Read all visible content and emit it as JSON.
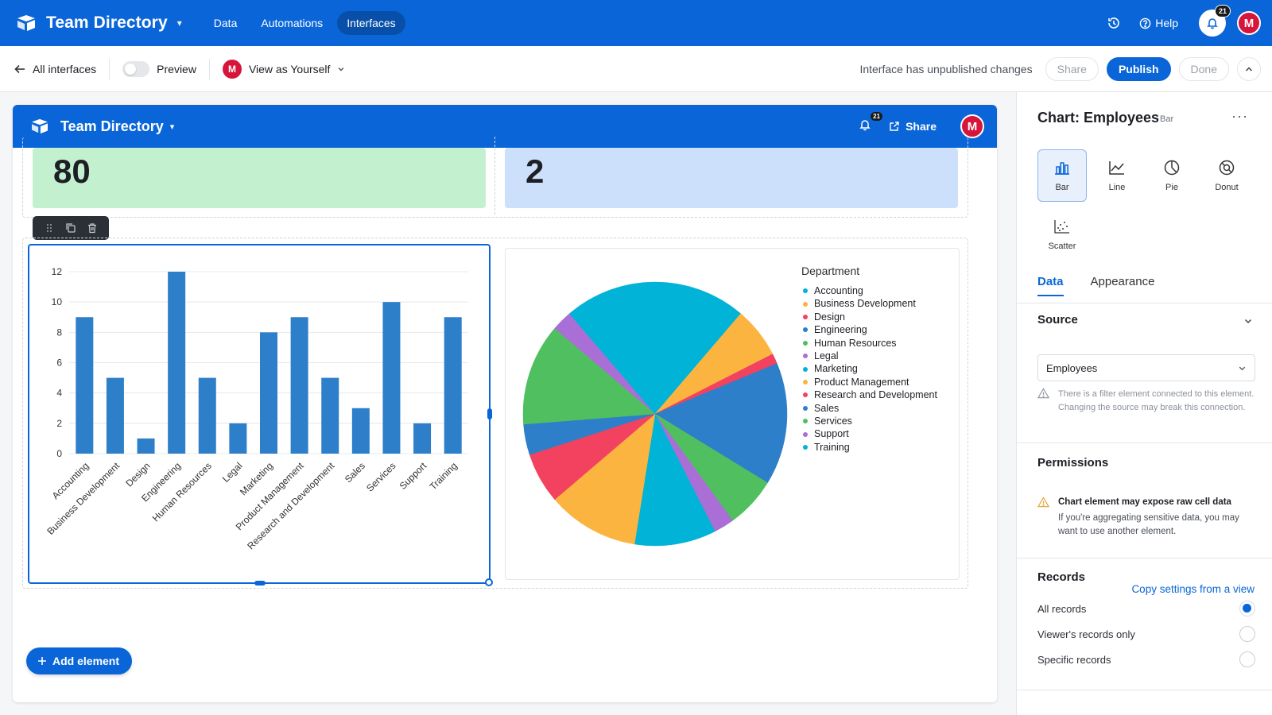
{
  "app": {
    "title": "Team Directory",
    "nav": [
      "Data",
      "Automations",
      "Interfaces"
    ],
    "active_nav": "Interfaces",
    "help_label": "Help",
    "notification_count": "21",
    "avatar_initial": "M"
  },
  "subbar": {
    "back_label": "All interfaces",
    "preview_label": "Preview",
    "view_as_label": "View as Yourself",
    "status": "Interface has unpublished changes",
    "share_label": "Share",
    "publish_label": "Publish",
    "done_label": "Done"
  },
  "interface": {
    "title": "Team Directory",
    "notification_count": "21",
    "share_label": "Share",
    "avatar_initial": "M",
    "stats": [
      {
        "value": "80",
        "color": "#c3f1d0"
      },
      {
        "value": "2",
        "color": "#cde0fb"
      }
    ],
    "add_element_label": "Add element"
  },
  "colors": {
    "brand": "#0a66d8",
    "bar": "#2d7fc9"
  },
  "chart_data": [
    {
      "type": "bar",
      "categories": [
        "Accounting",
        "Business Development",
        "Design",
        "Engineering",
        "Human Resources",
        "Legal",
        "Marketing",
        "Product Management",
        "Research and Development",
        "Sales",
        "Services",
        "Support",
        "Training"
      ],
      "values": [
        9,
        5,
        1,
        12,
        5,
        2,
        8,
        9,
        5,
        3,
        10,
        2,
        9
      ],
      "ylim": [
        0,
        12
      ],
      "yticks": [
        "0",
        "2",
        "4",
        "6",
        "8",
        "10",
        "12"
      ],
      "grid": true
    },
    {
      "type": "pie",
      "legend_title": "Department",
      "legend_position": "right",
      "labels": [
        "Accounting",
        "Business Development",
        "Design",
        "Engineering",
        "Human Resources",
        "Legal",
        "Marketing",
        "Product Management",
        "Research and Development",
        "Sales",
        "Services",
        "Support",
        "Training"
      ],
      "colors": [
        "#00b3d7",
        "#fcb441",
        "#f2425f",
        "#2d7fc9",
        "#4fbf60",
        "#a96fd6",
        "#00b3d7",
        "#fcb441",
        "#f2425f",
        "#2d7fc9",
        "#4fbf60",
        "#a96fd6",
        "#00b3d7"
      ],
      "slices": [
        {
          "label": "Accounting",
          "value": 9,
          "color": "#00b3d7"
        },
        {
          "label": "Business Development",
          "value": 5,
          "color": "#fcb441"
        },
        {
          "label": "Design",
          "value": 1,
          "color": "#f2425f"
        },
        {
          "label": "Engineering",
          "value": 12,
          "color": "#2d7fc9"
        },
        {
          "label": "Human Resources",
          "value": 5,
          "color": "#4fbf60"
        },
        {
          "label": "Legal",
          "value": 2,
          "color": "#a96fd6"
        },
        {
          "label": "Marketing",
          "value": 8,
          "color": "#00b3d7"
        },
        {
          "label": "Product Management",
          "value": 9,
          "color": "#fcb441"
        },
        {
          "label": "Research and Development",
          "value": 5,
          "color": "#f2425f"
        },
        {
          "label": "Sales",
          "value": 3,
          "color": "#2d7fc9"
        },
        {
          "label": "Services",
          "value": 10,
          "color": "#4fbf60"
        },
        {
          "label": "Support",
          "value": 2,
          "color": "#a96fd6"
        },
        {
          "label": "Training",
          "value": 9,
          "color": "#00b3d7"
        }
      ]
    }
  ],
  "panel": {
    "title": "Chart: Employees",
    "subtype": "Bar",
    "more": "···",
    "chart_types": [
      {
        "label": "Bar",
        "icon": "bar-chart-icon",
        "active": true
      },
      {
        "label": "Line",
        "icon": "line-chart-icon",
        "active": false
      },
      {
        "label": "Pie",
        "icon": "pie-chart-icon",
        "active": false
      },
      {
        "label": "Donut",
        "icon": "donut-chart-icon",
        "active": false
      },
      {
        "label": "Scatter",
        "icon": "scatter-chart-icon",
        "active": false
      }
    ],
    "tabs": [
      "Data",
      "Appearance"
    ],
    "active_tab": "Data",
    "source_heading": "Source",
    "source_value": "Employees",
    "source_note": "There is a filter element connected to this element. Changing the source may break this connection.",
    "permissions_heading": "Permissions",
    "permissions_title": "Chart element may expose raw cell data",
    "permissions_body": "If you're aggregating sensitive data, you may want to use another element.",
    "records_heading": "Records",
    "copy_settings_link": "Copy settings from a view",
    "records_options": [
      {
        "label": "All records",
        "selected": true
      },
      {
        "label": "Viewer's records only",
        "selected": false
      },
      {
        "label": "Specific records",
        "selected": false
      }
    ]
  }
}
